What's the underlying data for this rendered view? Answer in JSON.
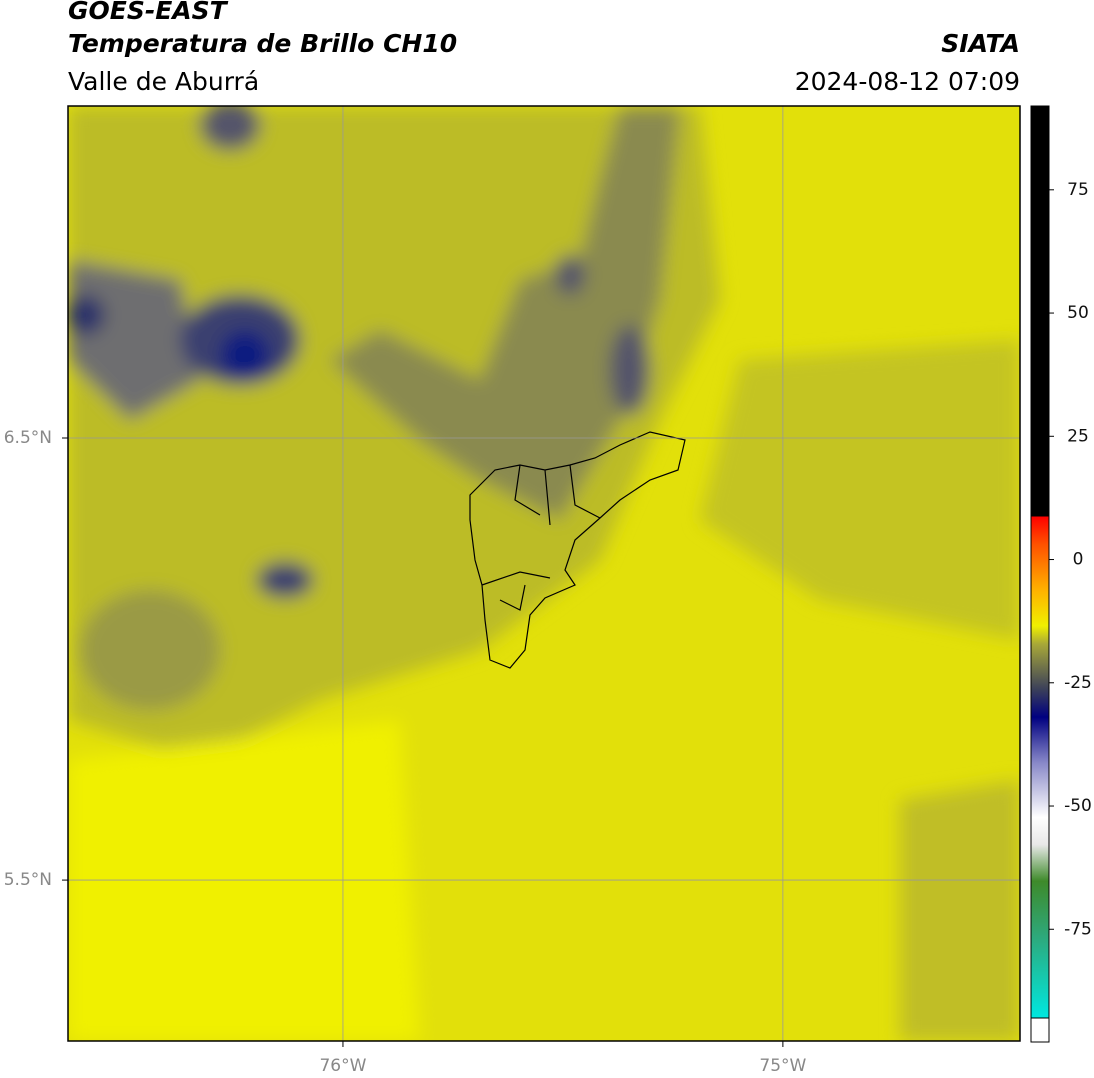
{
  "header": {
    "line1": "GOES-EAST",
    "line2": "Temperatura de Brillo CH10",
    "subtitle": "Valle de Aburrá",
    "source": "SIATA",
    "timestamp": "2024-08-12 07:09"
  },
  "chart_data": {
    "type": "map",
    "xlim": [
      -76.625,
      -74.461
    ],
    "ylim": [
      5.136,
      7.251
    ],
    "xticks": [
      {
        "value": -76,
        "label": "76°W"
      },
      {
        "value": -75,
        "label": "75°W"
      }
    ],
    "yticks": [
      {
        "value": 6.5,
        "label": "6.5°N"
      },
      {
        "value": 5.5,
        "label": "5.5°N"
      }
    ],
    "grid": true,
    "colorbar": {
      "lim": [
        -93,
        92
      ],
      "ticks": [
        75,
        50,
        25,
        0,
        -25,
        -50,
        -75
      ]
    }
  }
}
